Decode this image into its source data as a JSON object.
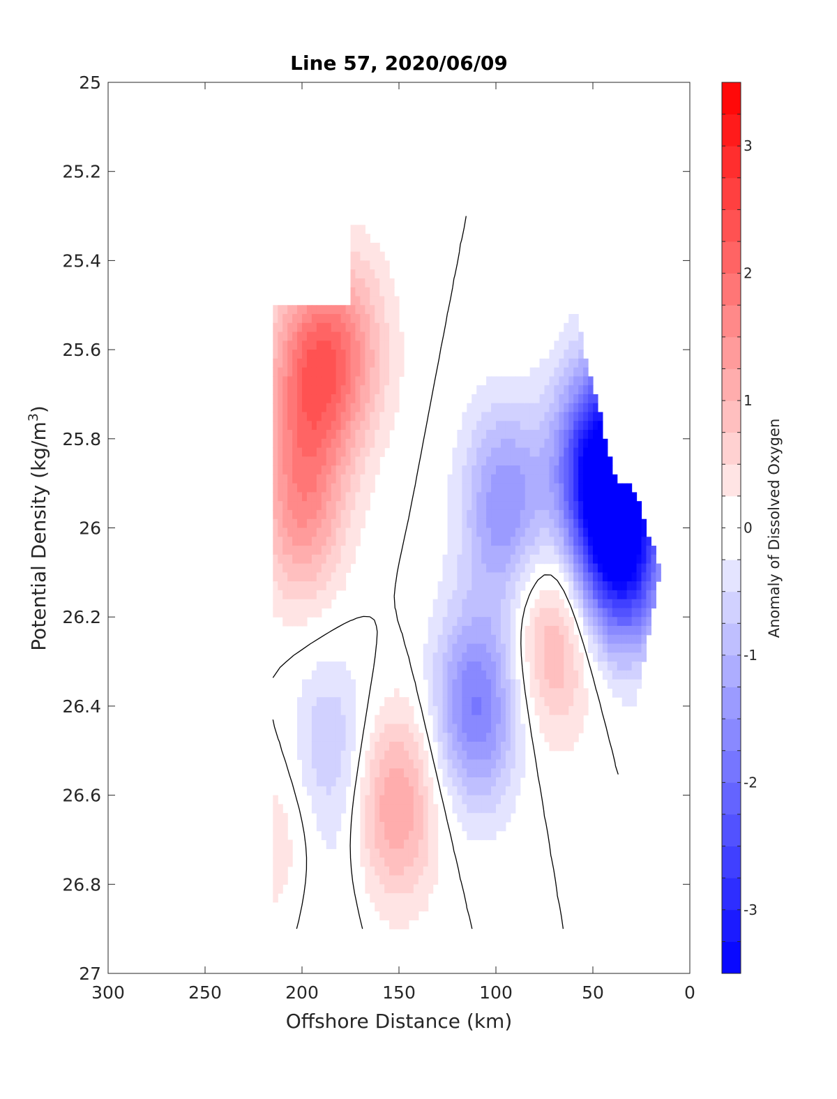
{
  "chart_data": {
    "type": "heatmap",
    "subtype": "filled-contour",
    "title": "Line 57, 2020/06/09",
    "xlabel": "Offshore Distance (km)",
    "ylabel_prefix": "Potential Density (kg/m",
    "ylabel_sup": "3",
    "ylabel_suffix": ")",
    "colorbar_label": "Anomaly of Dissolved Oxygen",
    "x_axis": {
      "range": [
        300,
        0
      ],
      "reversed": true,
      "ticks": [
        300,
        250,
        200,
        150,
        100,
        50,
        0
      ],
      "tick_labels": [
        "300",
        "250",
        "200",
        "150",
        "100",
        "50",
        "0"
      ]
    },
    "y_axis": {
      "range": [
        25,
        27
      ],
      "reversed": true,
      "ticks": [
        25,
        25.2,
        25.4,
        25.6,
        25.8,
        26,
        26.2,
        26.4,
        26.6,
        26.8,
        27
      ],
      "tick_labels": [
        "25",
        "25.2",
        "25.4",
        "25.6",
        "25.8",
        "26",
        "26.2",
        "26.4",
        "26.6",
        "26.8",
        "27"
      ]
    },
    "colorbar": {
      "range": [
        -3.5,
        3.5
      ],
      "step": 0.25,
      "ticks": [
        -3,
        -2,
        -1,
        0,
        1,
        2,
        3
      ],
      "tick_labels": [
        "-3",
        "-2",
        "-1",
        "0",
        "1",
        "2",
        "3"
      ],
      "low_color": "#0000ff",
      "mid_color": "#ffffff",
      "high_color": "#ff0000"
    },
    "grid": false,
    "zero_contour_color": "#000000",
    "data_region": {
      "x_range_km": [
        215,
        15
      ],
      "density_range": [
        25.3,
        26.9
      ]
    },
    "features": [
      {
        "type": "positive",
        "x": 195,
        "y": 25.65,
        "peak": 1.8
      },
      {
        "type": "positive",
        "x": 200,
        "y": 25.95,
        "peak": 1.4
      },
      {
        "type": "positive",
        "x": 175,
        "y": 25.6,
        "peak": 1.0
      },
      {
        "type": "positive",
        "x": 152,
        "y": 26.62,
        "peak": 1.3
      },
      {
        "type": "positive",
        "x": 70,
        "y": 26.25,
        "peak": 1.1
      },
      {
        "type": "positive",
        "x": 210,
        "y": 26.7,
        "peak": 0.5
      },
      {
        "type": "negative",
        "x": 110,
        "y": 26.4,
        "peak": -1.8
      },
      {
        "type": "negative",
        "x": 95,
        "y": 25.95,
        "peak": -1.5
      },
      {
        "type": "negative",
        "x": 185,
        "y": 26.5,
        "peak": -0.8
      },
      {
        "type": "negative",
        "x": 188,
        "y": 26.85,
        "peak": -0.3
      },
      {
        "type": "negative",
        "x": 35,
        "y": 26.05,
        "peak": -3.3
      },
      {
        "type": "negative",
        "x": 45,
        "y": 25.85,
        "peak": -3.5
      }
    ]
  }
}
